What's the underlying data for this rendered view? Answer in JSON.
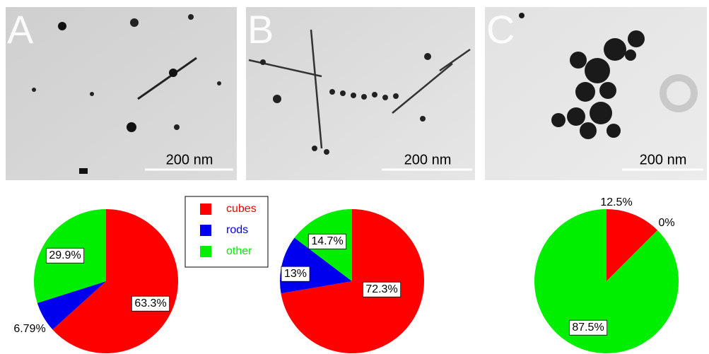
{
  "panels": [
    {
      "label": "A",
      "scale_bar": "200 nm"
    },
    {
      "label": "B",
      "scale_bar": "200 nm"
    },
    {
      "label": "C",
      "scale_bar": "200 nm"
    }
  ],
  "chart_data": {
    "type": "pie",
    "categories": [
      "cubes",
      "rods",
      "other"
    ],
    "colors": [
      "#ff0000",
      "#0000ee",
      "#00ee00"
    ],
    "series": [
      {
        "values": [
          63.3,
          6.79,
          29.9
        ],
        "value_labels": [
          "63.3%",
          "6.79%",
          "29.9%"
        ]
      },
      {
        "values": [
          72.3,
          13,
          14.7
        ],
        "value_labels": [
          "72.3%",
          "13%",
          "14.7%"
        ]
      },
      {
        "values": [
          12.5,
          0,
          87.5
        ],
        "value_labels": [
          "12.5%",
          "0%",
          "87.5%"
        ]
      }
    ]
  }
}
